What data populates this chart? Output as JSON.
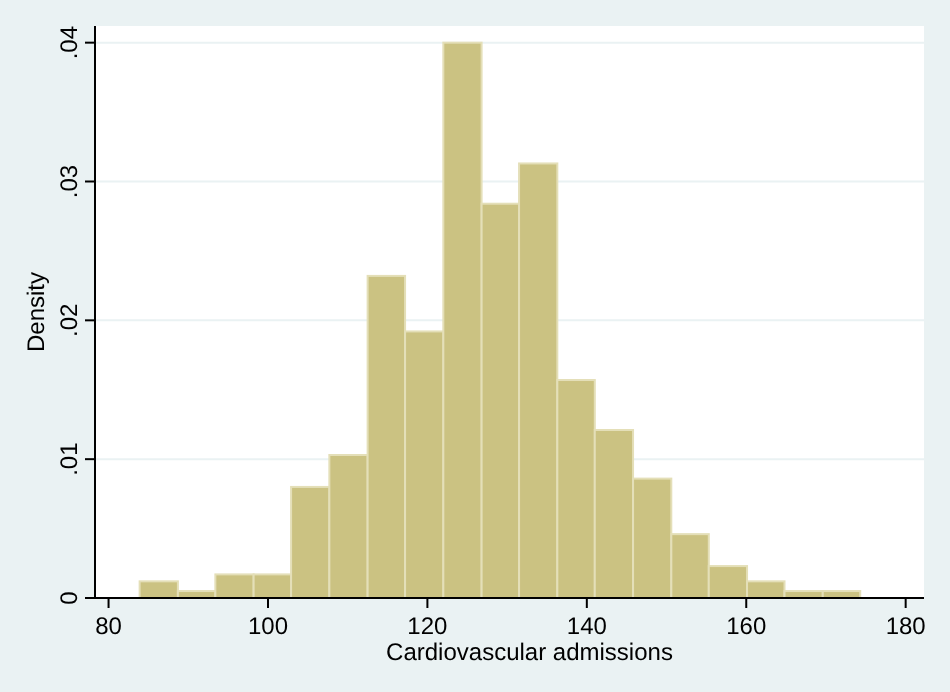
{
  "chart_data": {
    "type": "histogram",
    "xlabel": "Cardiovascular admissions",
    "ylabel": "Density",
    "bins": [
      83.9,
      88.7,
      93.4,
      98.2,
      102.9,
      107.7,
      112.5,
      117.2,
      122.0,
      126.8,
      131.5,
      136.3,
      141.0,
      145.8,
      150.6,
      155.3,
      160.1,
      164.8,
      169.6,
      174.3
    ],
    "values": [
      0.0012,
      0.0005,
      0.0017,
      0.0017,
      0.008,
      0.0103,
      0.0232,
      0.0192,
      0.04,
      0.0284,
      0.0313,
      0.0157,
      0.0121,
      0.0086,
      0.0046,
      0.0023,
      0.0012,
      0.0005,
      0.0005
    ],
    "color": "#cbc282",
    "xlim": [
      78.3,
      182.3
    ],
    "xticks": [
      80,
      100,
      120,
      140,
      160,
      180
    ],
    "ylim": [
      0,
      0.0412
    ],
    "yticks": [
      0,
      {
        "value": 0.01,
        "label": ".01"
      },
      {
        "value": 0.02,
        "label": ".02"
      },
      {
        "value": 0.03,
        "label": ".03"
      },
      {
        "value": 0.04,
        "label": ".04"
      }
    ],
    "grid": "y"
  }
}
